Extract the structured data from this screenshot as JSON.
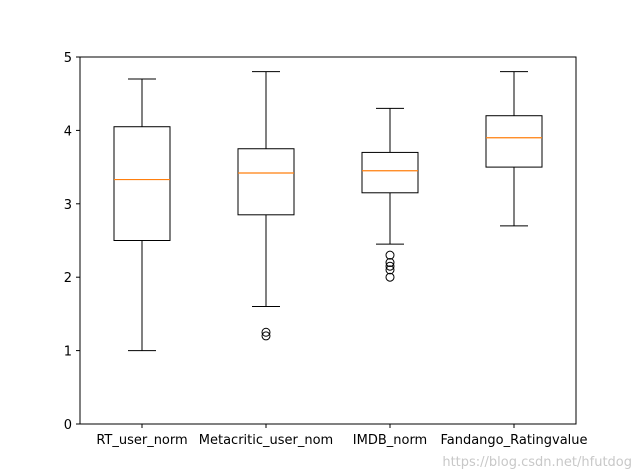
{
  "chart_data": {
    "type": "boxplot",
    "categories": [
      "RT_user_norm",
      "Metacritic_user_nom",
      "IMDB_norm",
      "Fandango_Ratingvalue"
    ],
    "boxes": [
      {
        "whislo": 1.0,
        "q1": 2.5,
        "med": 3.33,
        "q3": 4.05,
        "whishi": 4.7,
        "fliers": []
      },
      {
        "whislo": 1.6,
        "q1": 2.85,
        "med": 3.42,
        "q3": 3.75,
        "whishi": 4.8,
        "fliers": [
          1.2,
          1.25
        ]
      },
      {
        "whislo": 2.45,
        "q1": 3.15,
        "med": 3.45,
        "q3": 3.7,
        "whishi": 4.3,
        "fliers": [
          2.0,
          2.1,
          2.15,
          2.2,
          2.3
        ]
      },
      {
        "whislo": 2.7,
        "q1": 3.5,
        "med": 3.9,
        "q3": 4.2,
        "whishi": 4.8,
        "fliers": []
      }
    ],
    "ylim": [
      0,
      5
    ],
    "yticks": [
      0,
      1,
      2,
      3,
      4,
      5
    ],
    "grid": false,
    "colors": {
      "box": "#000000",
      "median": "#ff7f0e",
      "flier": "#000000"
    }
  },
  "watermark": "https://blog.csdn.net/hfutdog"
}
